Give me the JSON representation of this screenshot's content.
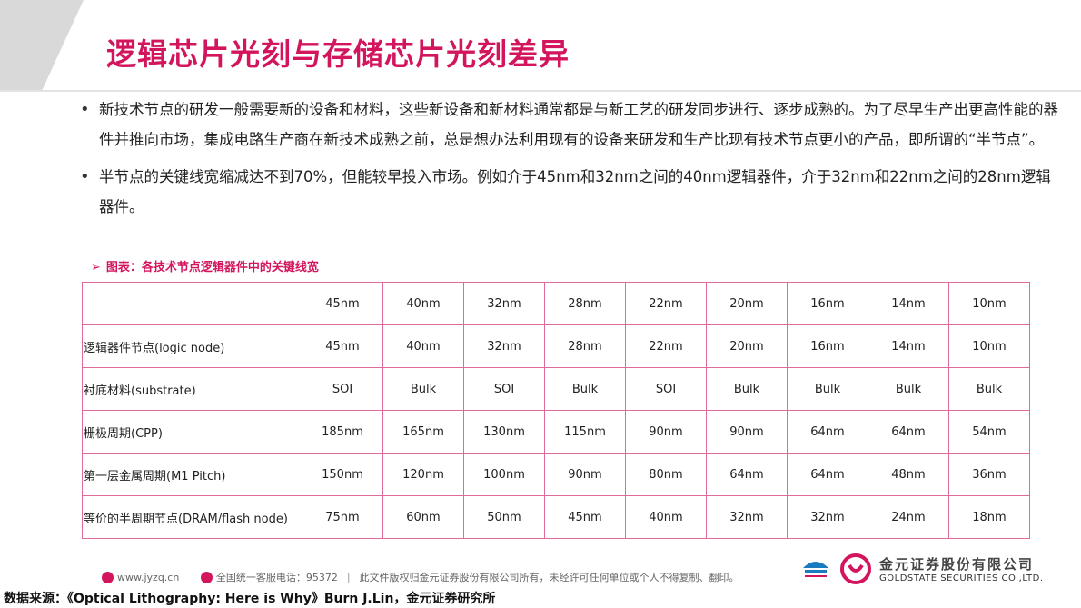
{
  "page": {
    "title": "逻辑芯片光刻与存储芯片光刻差异"
  },
  "bullets": [
    {
      "text": "新技术节点的研发一般需要新的设备和材料，这些新设备和新材料通常都是与新工艺的研发同步进行、逐步成熟的。为了尽早生产出更高性能的器件并推向市场，集成电路生产商在新技术成熟之前，总是想办法利用现有的设备来研发和生产比现有技术节点更小的产品，即所谓的“半节点”。"
    },
    {
      "text": "半节点的关键线宽缩减达不到70%，但能较早投入市场。例如介于45nm和32nm之间的40nm逻辑器件，介于32nm和22nm之间的28nm逻辑器件。"
    }
  ],
  "caption": {
    "arrow": "➢",
    "text": "图表：各技术节点逻辑器件中的关键线宽"
  },
  "table": {
    "header": [
      "",
      "45nm",
      "40nm",
      "32nm",
      "28nm",
      "22nm",
      "20nm",
      "16nm",
      "14nm",
      "10nm"
    ],
    "rows": [
      [
        "逻辑器件节点(logic node)",
        "45nm",
        "40nm",
        "32nm",
        "28nm",
        "22nm",
        "20nm",
        "16nm",
        "14nm",
        "10nm"
      ],
      [
        "衬底材料(substrate)",
        "SOI",
        "Bulk",
        "SOI",
        "Bulk",
        "SOI",
        "Bulk",
        "Bulk",
        "Bulk",
        "Bulk"
      ],
      [
        "栅极周期(CPP)",
        "185nm",
        "165nm",
        "130nm",
        "115nm",
        "90nm",
        "90nm",
        "64nm",
        "64nm",
        "54nm"
      ],
      [
        "第一层金属周期(M1 Pitch)",
        "150nm",
        "120nm",
        "100nm",
        "90nm",
        "80nm",
        "64nm",
        "64nm",
        "48nm",
        "36nm"
      ],
      [
        "等价的半周期节点(DRAM/flash node)",
        "75nm",
        "60nm",
        "50nm",
        "45nm",
        "40nm",
        "32nm",
        "32nm",
        "24nm",
        "18nm"
      ]
    ]
  },
  "footer": {
    "website": "www.jyzq.cn",
    "hotline": "全国统一客服电话：95372",
    "copyright": "此文件版权归金元证券股份有限公司所有，未经许可任何单位或个人不得复制、翻印。"
  },
  "logo": {
    "name_cn": "金元证券股份有限公司",
    "name_en": "GOLDSTATE SECURITIES CO.,LTD."
  },
  "source": {
    "text": "数据来源：《Optical Lithography: Here is Why》Burn J.Lin，金元证券研究所"
  },
  "colors": {
    "accent": "#d3155e",
    "table_border": "#e06a9a"
  }
}
